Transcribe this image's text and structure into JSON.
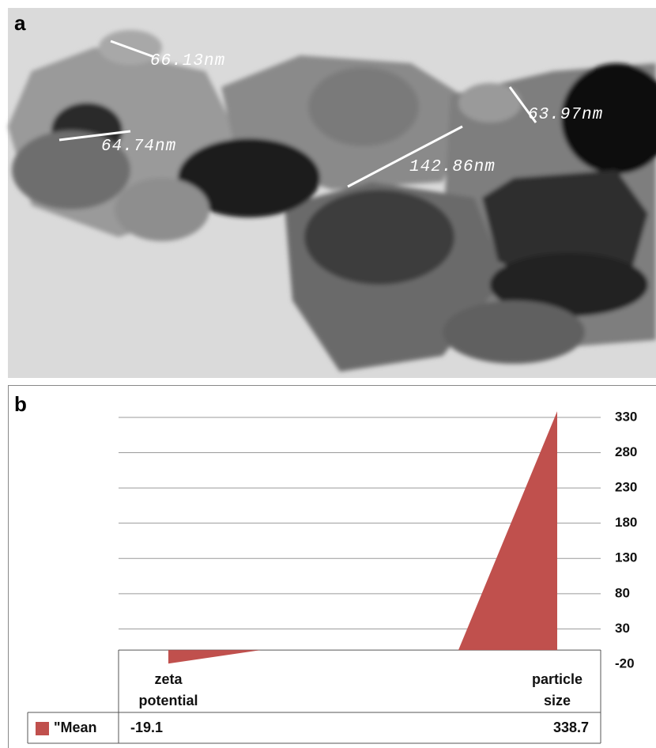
{
  "panel_a": {
    "label": "a",
    "annotations": [
      "66.13nm",
      "64.74nm",
      "142.86nm",
      "63.97nm"
    ]
  },
  "chart_data": {
    "type": "area",
    "panel_label": "b",
    "categories": [
      "zeta potential",
      "particle size"
    ],
    "series": [
      {
        "name": "\"Mean",
        "color": "#c0504d",
        "values": [
          -19.1,
          338.7
        ]
      }
    ],
    "ylim": [
      -20,
      340
    ],
    "yticks": [
      330,
      280,
      230,
      180,
      130,
      80,
      30,
      -20
    ],
    "grid": true,
    "data_table": true
  }
}
